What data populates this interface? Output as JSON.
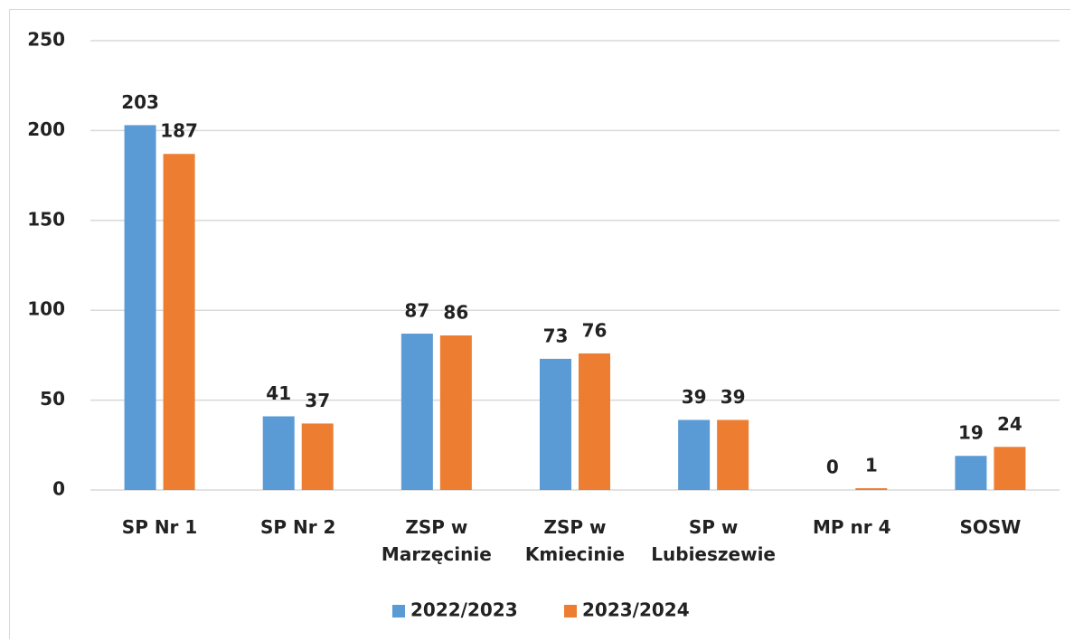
{
  "chart_data": {
    "type": "bar",
    "categories": [
      "SP Nr 1",
      "SP Nr 2",
      "ZSP w\nMarzęcinie",
      "ZSP w\nKmiecinie",
      "SP w\nLubieszewie",
      "MP nr 4",
      "SOSW"
    ],
    "series": [
      {
        "name": "2022/2023",
        "color": "#5b9bd5",
        "values": [
          203,
          41,
          87,
          73,
          39,
          0,
          19
        ]
      },
      {
        "name": "2023/2024",
        "color": "#ed7d31",
        "values": [
          187,
          37,
          86,
          76,
          39,
          1,
          24
        ]
      }
    ],
    "ylim": [
      0,
      250
    ],
    "yticks": [
      0,
      50,
      100,
      150,
      200,
      250
    ],
    "grid": true,
    "legend": "bottom"
  }
}
